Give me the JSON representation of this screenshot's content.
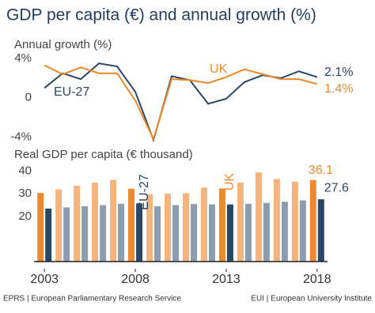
{
  "title": "GDP per capita (€) and annual growth (%)",
  "footer": {
    "left": "EPRS | European Parliamentary Research Service",
    "right": "EUI | European University Institute"
  },
  "chart_data": [
    {
      "type": "line",
      "title": "Annual growth (%)",
      "x": [
        2003,
        2004,
        2005,
        2006,
        2007,
        2008,
        2009,
        2010,
        2011,
        2012,
        2013,
        2014,
        2015,
        2016,
        2017,
        2018
      ],
      "xlim": [
        2002.6,
        2018.4
      ],
      "ylim": [
        -5,
        5
      ],
      "yticks": [
        {
          "value": 4,
          "label": "4%"
        },
        0,
        {
          "value": -4,
          "label": "-4%"
        }
      ],
      "grid": false,
      "series": [
        {
          "name": "EU-27",
          "color": "#2b4766",
          "values": [
            1.0,
            2.5,
            1.9,
            3.5,
            3.2,
            0.6,
            -4.3,
            2.2,
            1.8,
            -0.6,
            -0.1,
            1.6,
            2.3,
            2.0,
            2.7,
            2.1
          ],
          "value_labels": [
            null,
            null,
            null,
            null,
            null,
            null,
            null,
            null,
            null,
            null,
            null,
            null,
            null,
            null,
            null,
            "2.1%"
          ]
        },
        {
          "name": "UK",
          "color": "#e8892b",
          "values": [
            3.3,
            2.4,
            3.1,
            2.5,
            2.5,
            -0.3,
            -4.2,
            1.9,
            1.8,
            1.5,
            2.1,
            2.9,
            2.4,
            1.9,
            1.9,
            1.4
          ],
          "value_labels": [
            null,
            null,
            null,
            null,
            null,
            null,
            null,
            null,
            null,
            null,
            null,
            null,
            null,
            null,
            null,
            "1.4%"
          ]
        }
      ]
    },
    {
      "type": "bar",
      "title": "Real GDP per capita (€ thousand)",
      "x": [
        2003,
        2004,
        2005,
        2006,
        2007,
        2008,
        2009,
        2010,
        2011,
        2012,
        2013,
        2014,
        2015,
        2016,
        2017,
        2018
      ],
      "xlim": [
        2002.6,
        2018.4
      ],
      "xticks": [
        2003,
        2008,
        2013,
        2018
      ],
      "ylim": [
        -3.2,
        42
      ],
      "yticks": [
        20,
        30,
        40
      ],
      "grid": false,
      "series": [
        {
          "name": "UK",
          "color": "#f5b47c",
          "highlight_color": "#ec8a2f",
          "values": [
            30.4,
            32.0,
            33.6,
            35.0,
            36.2,
            32.3,
            29.8,
            30.1,
            30.3,
            32.8,
            32.4,
            35.0,
            39.5,
            36.6,
            35.4,
            36.1
          ]
        },
        {
          "name": "EU-27",
          "color": "#8d9db0",
          "highlight_color": "#2b4766",
          "values": [
            23.5,
            24.0,
            24.5,
            25.0,
            25.6,
            25.8,
            24.5,
            25.0,
            25.5,
            25.3,
            25.3,
            25.6,
            26.0,
            26.5,
            27.1,
            27.6
          ]
        }
      ]
    }
  ]
}
